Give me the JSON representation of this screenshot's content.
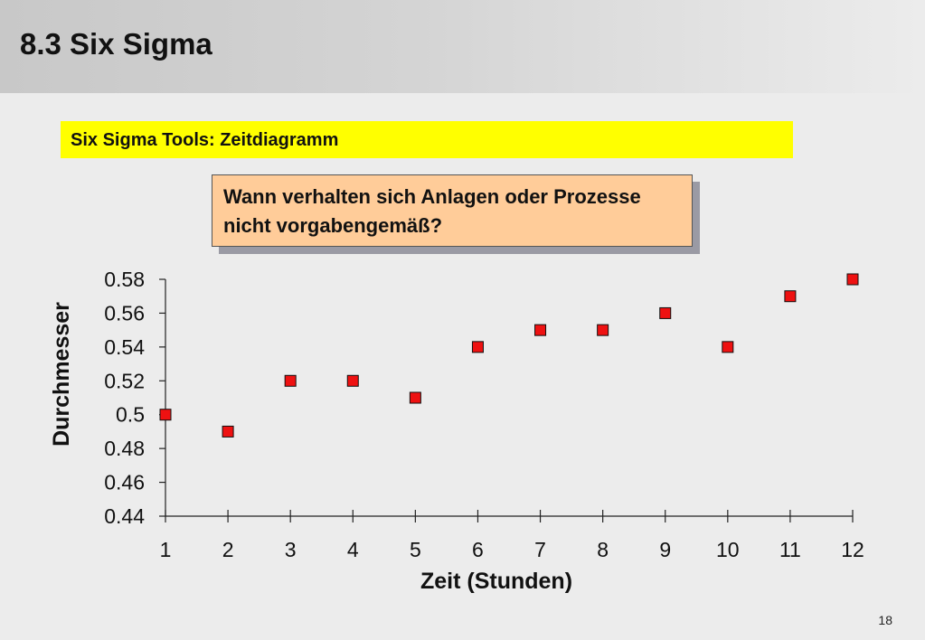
{
  "slide": {
    "title": "8.3 Six Sigma",
    "section": "Six Sigma Tools: Zeitdiagramm",
    "callout": "Wann verhalten sich Anlagen oder Prozesse nicht vorgabengemäß?",
    "page_number": "18"
  },
  "colors": {
    "banner": "#ffff00",
    "callout_fill": "#ffcc99",
    "marker": "#ee1111"
  },
  "chart_data": {
    "type": "scatter",
    "xlabel": "Zeit (Stunden)",
    "ylabel": "Durchmesser",
    "x": [
      1,
      2,
      3,
      4,
      5,
      6,
      7,
      8,
      9,
      10,
      11,
      12
    ],
    "y": [
      0.5,
      0.49,
      0.52,
      0.52,
      0.51,
      0.54,
      0.55,
      0.55,
      0.56,
      0.54,
      0.57,
      0.58
    ],
    "xticks": [
      "1",
      "2",
      "3",
      "4",
      "5",
      "6",
      "7",
      "8",
      "9",
      "10",
      "11",
      "12"
    ],
    "yticks": [
      "0.44",
      "0.46",
      "0.48",
      "0.5",
      "0.52",
      "0.54",
      "0.56",
      "0.58"
    ],
    "xlim": [
      1,
      12
    ],
    "ylim": [
      0.44,
      0.58
    ],
    "grid": false,
    "legend": false,
    "marker": "square"
  }
}
